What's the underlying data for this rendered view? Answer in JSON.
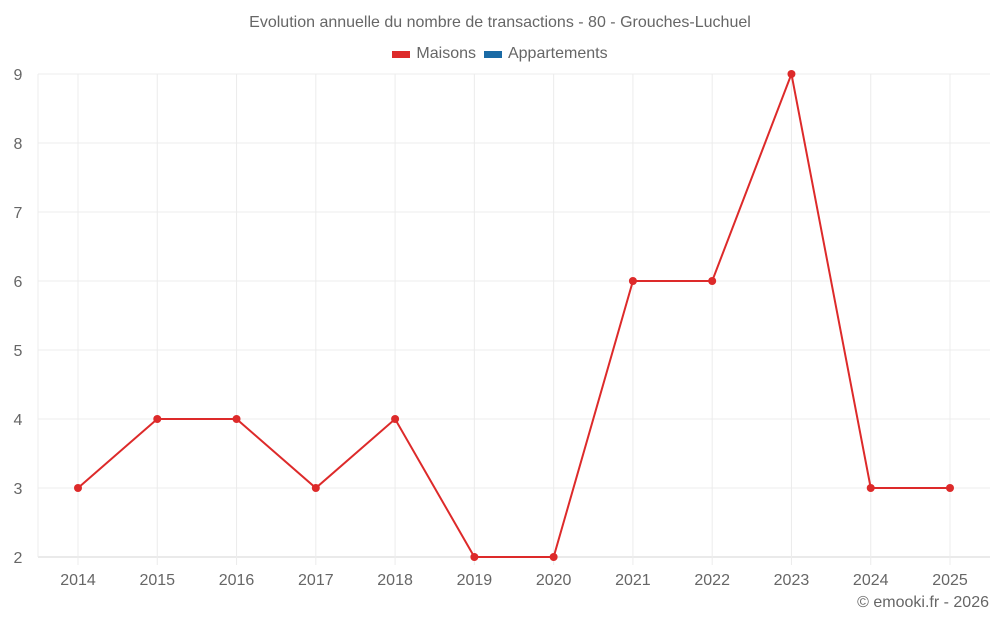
{
  "title": "Evolution annuelle du nombre de transactions - 80 - Grouches-Luchuel",
  "legend": [
    {
      "label": "Maisons",
      "color": "#dd2a2a"
    },
    {
      "label": "Appartements",
      "color": "#1a6aa5"
    }
  ],
  "credit": "© emooki.fr - 2026",
  "chart_data": {
    "type": "line",
    "title": "Evolution annuelle du nombre de transactions - 80 - Grouches-Luchuel",
    "xlabel": "",
    "ylabel": "",
    "categories": [
      "2014",
      "2015",
      "2016",
      "2017",
      "2018",
      "2019",
      "2020",
      "2021",
      "2022",
      "2023",
      "2024",
      "2025"
    ],
    "series": [
      {
        "name": "Maisons",
        "color": "#dd2a2a",
        "values": [
          3,
          4,
          4,
          3,
          4,
          2,
          2,
          6,
          6,
          9,
          3,
          3
        ]
      },
      {
        "name": "Appartements",
        "color": "#1a6aa5",
        "values": []
      }
    ],
    "ylim": [
      2,
      9
    ],
    "yticks": [
      2,
      3,
      4,
      5,
      6,
      7,
      8,
      9
    ],
    "grid": true,
    "legend_position": "top"
  }
}
